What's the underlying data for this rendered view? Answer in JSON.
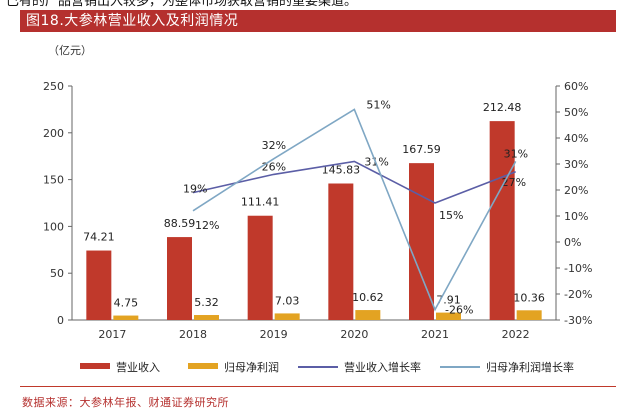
{
  "top_text": "已有的产品营销出入较多，为整体市场获取营销的重要渠道。",
  "figure_title": "图18.大参林营业收入及利润情况",
  "source": "数据来源：大参林年报、财通证券研究所",
  "colors": {
    "revenue_bar": "#c0392b",
    "profit_bar": "#e3a322",
    "revenue_growth_line": "#5b5ea6",
    "profit_growth_line": "#7fa7c4",
    "title_bg": "#b5302e"
  },
  "chart_data": {
    "type": "bar",
    "categories": [
      "2017",
      "2018",
      "2019",
      "2020",
      "2021",
      "2022"
    ],
    "unit_label": "（亿元）",
    "series": [
      {
        "name": "营业收入",
        "kind": "bar",
        "axis": "left",
        "values": [
          74.21,
          88.59,
          111.41,
          145.83,
          167.59,
          212.48
        ],
        "labels": [
          "74.21",
          "88.59",
          "111.41",
          "145.83",
          "167.59",
          "212.48"
        ]
      },
      {
        "name": "归母净利润",
        "kind": "bar",
        "axis": "left",
        "values": [
          4.75,
          5.32,
          7.03,
          10.62,
          7.91,
          10.36
        ],
        "labels": [
          "4.75",
          "5.32",
          "7.03",
          "10.62",
          "7.91",
          "10.36"
        ]
      },
      {
        "name": "营业收入增长率",
        "kind": "line",
        "axis": "right",
        "values": [
          null,
          19,
          26,
          31,
          15,
          27
        ],
        "labels": [
          "",
          "19%",
          "26%",
          "31%",
          "15%",
          "27%"
        ]
      },
      {
        "name": "归母净利润增长率",
        "kind": "line",
        "axis": "right",
        "values": [
          null,
          12,
          32,
          51,
          -26,
          31
        ],
        "labels": [
          "",
          "12%",
          "32%",
          "51%",
          "-26%",
          "31%"
        ]
      }
    ],
    "left_axis": {
      "ylim": [
        0,
        250
      ],
      "ticks": [
        "0",
        "50",
        "100",
        "150",
        "200",
        "250"
      ],
      "tick_values": [
        0,
        50,
        100,
        150,
        200,
        250
      ]
    },
    "right_axis": {
      "ylim": [
        -30,
        60
      ],
      "ticks": [
        "-30%",
        "-20%",
        "-10%",
        "0%",
        "10%",
        "20%",
        "30%",
        "40%",
        "50%",
        "60%"
      ],
      "tick_values": [
        -30,
        -20,
        -10,
        0,
        10,
        20,
        30,
        40,
        50,
        60
      ]
    },
    "legend": [
      "营业收入",
      "归母净利润",
      "营业收入增长率",
      "归母净利润增长率"
    ],
    "legend_position": "bottom",
    "grid": false
  }
}
